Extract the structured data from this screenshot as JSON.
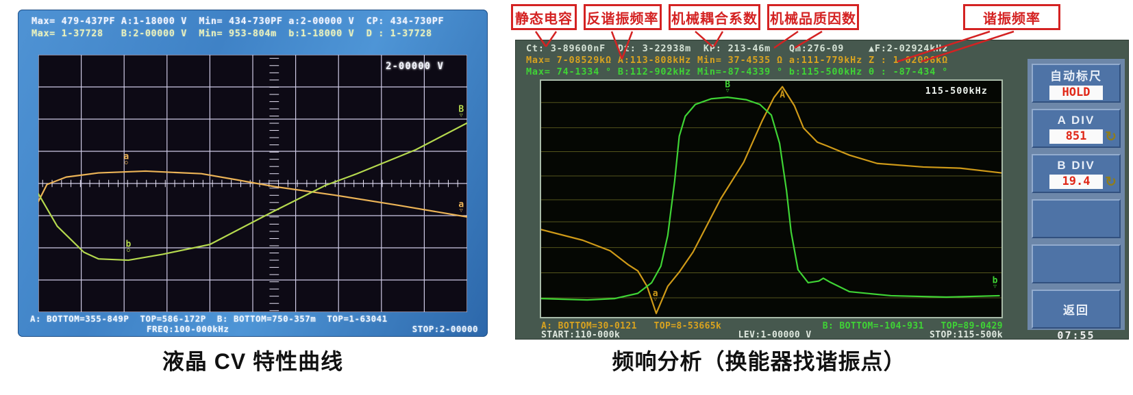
{
  "left": {
    "caption": "液晶 CV 特性曲线",
    "header_line1": "Max= 479-437PF A:1-18000 V  Min= 434-730PF a:2-00000 V  CP: 434-730PF",
    "header_line2": "Max= 1-37728   B:2-00000 V  Min= 953-804m  b:1-18000 V  D : 1-37728",
    "scale_label": "2-00000 V",
    "footer_line1": "A: BOTTOM=355-849P  TOP=586-172P  B: BOTTOM=750-357m  TOP=1-63041",
    "footer_freq": "FREQ:100-000kHz",
    "footer_stop": "STOP:2-00000"
  },
  "right": {
    "caption": "频响分析（换能器找谐振点）",
    "callouts": [
      "静态电容",
      "反谐振频率",
      "机械耦合系数",
      "机械品质因数",
      "谐振频率"
    ],
    "header_line1": "Ct: 3-89600nF  Dt: 3-22938m  KP: 213-46m   Qm:276-09    ▲F:2-02924kHz",
    "header_line2": "Max= 7-08529kΩ A:113-808kHz Min= 37-4535 Ω a:111-779kHz Z : 1-02096kΩ",
    "header_line3": "Max= 74-1334 ° B:112-902kHz Min=-87-4339 ° b:115-500kHz θ : -87-434 °",
    "plot_label": "115-500kHz",
    "footer_a": "A: BOTTOM=30-0121   TOP=8-53665k",
    "footer_b": "B: BOTTOM=-104-931   TOP=89-0429",
    "footer_start": "START:110-000k",
    "footer_lev": "LEV:1-00000 V",
    "footer_stop": "STOP:115-500k",
    "time": "07:55",
    "knob_glyph": "↻",
    "buttons": [
      {
        "title": "自动标尺",
        "value": "HOLD",
        "knob": false
      },
      {
        "title": "A DIV",
        "value": "851",
        "knob": true
      },
      {
        "title": "B DIV",
        "value": "19.4",
        "knob": true
      },
      {
        "title": "",
        "value": "",
        "knob": false
      },
      {
        "title": "",
        "value": "",
        "knob": false
      },
      {
        "title": "返回",
        "value": "",
        "knob": false
      }
    ]
  },
  "colors": {
    "callout_red": "#d42222",
    "softkey_blue": "#4e73a6",
    "value_red": "#e02818",
    "trace_orange_left": "#ecb457",
    "trace_green_left": "#b5d94e",
    "trace_orange_right": "#cf9a18",
    "trace_green_right": "#3fd435",
    "yellow_readout": "#d9a31f"
  },
  "chart_data": [
    {
      "id": "cv",
      "type": "line",
      "title": "液晶 CV 特性曲线",
      "note": "LCD C-V sweep at FREQ 100.000 kHz; points are percent positions on the graticule (y measured downward). Readouts: CP max 479.437 pF / min 434.730 pF, D max 1.37728 / min 953.804 m",
      "grid": {
        "v_step_pct": 10,
        "h_step_pct": 12.5,
        "tick_axis_x_pct": 55,
        "tick_axis_y_pct": 50,
        "color": "#cfcbe6",
        "tick_color": "#eae6f8"
      },
      "series": [
        {
          "name": "CP-trace-a",
          "color": "#ecb457",
          "readout_max": "479-437PF",
          "readout_min": "434-730PF",
          "points_pct": [
            [
              0,
              57
            ],
            [
              2,
              50.4
            ],
            [
              6.5,
              47.5
            ],
            [
              14,
              45.9
            ],
            [
              25,
              45.2
            ],
            [
              38,
              46.2
            ],
            [
              46,
              48.5
            ],
            [
              55,
              51.2
            ],
            [
              69,
              54.5
            ],
            [
              84,
              58.5
            ],
            [
              100,
              63
            ]
          ]
        },
        {
          "name": "D-trace-b",
          "color": "#b5d94e",
          "readout_max": "1-37728",
          "readout_min": "953-804m",
          "points_pct": [
            [
              0,
              54
            ],
            [
              4.4,
              66.6
            ],
            [
              10.6,
              76.7
            ],
            [
              14,
              79.3
            ],
            [
              21,
              79.8
            ],
            [
              29,
              77.5
            ],
            [
              40,
              73.7
            ],
            [
              55,
              60.7
            ],
            [
              67,
              50.7
            ],
            [
              74,
              46.4
            ],
            [
              88,
              36.9
            ],
            [
              100,
              26.5
            ]
          ]
        }
      ],
      "markers": [
        {
          "t": "a",
          "color": "#ecb457",
          "x": 20.5,
          "y": 40.5,
          "sub": "○"
        },
        {
          "t": "b",
          "color": "#b5d94e",
          "x": 21,
          "y": 74.5,
          "sub": "○"
        },
        {
          "t": "B",
          "color": "#b5d94e",
          "x": 98.6,
          "y": 22,
          "sub": "▽"
        },
        {
          "t": "a",
          "color": "#ecb457",
          "x": 98.6,
          "y": 59,
          "sub": "▽"
        }
      ]
    },
    {
      "id": "fr",
      "type": "line",
      "title": "频响分析（换能器找谐振点）",
      "x_range": {
        "start": "110.000 kHz",
        "stop": "115.500 kHz",
        "level": "1.00000 V"
      },
      "note": "Transducer impedance |Z| (A, orange, min at resonance 111.779 kHz, peak at anti-resonance 113.808 kHz) and phase (B, green, max 74.1334°); points are percent positions on the graticule (y down)",
      "grid": {
        "h_lines_pct": [
          9.2,
          19.9,
          30,
          40.3,
          50.4,
          59.7,
          70.6,
          81.3,
          91.9
        ],
        "color": "#55551c",
        "tick_color": "#55551c"
      },
      "series": [
        {
          "name": "impedance-trace-A",
          "color": "#cf9a18",
          "readout_max": "7-08529kΩ",
          "readout_min": "37-4535 Ω",
          "points_pct": [
            [
              0,
              63
            ],
            [
              9,
              67.5
            ],
            [
              15,
              72
            ],
            [
              19,
              78
            ],
            [
              21,
              80.5
            ],
            [
              23,
              87
            ],
            [
              25,
              98.5
            ],
            [
              27.5,
              87
            ],
            [
              30,
              81
            ],
            [
              33,
              72.5
            ],
            [
              39,
              50
            ],
            [
              44,
              34.5
            ],
            [
              48,
              17
            ],
            [
              50.6,
              7
            ],
            [
              52.4,
              2.5
            ],
            [
              55,
              10.5
            ],
            [
              57,
              20
            ],
            [
              60,
              26
            ],
            [
              62,
              27.5
            ],
            [
              67,
              31.5
            ],
            [
              73,
              35
            ],
            [
              83,
              36.5
            ],
            [
              91,
              37
            ],
            [
              100,
              39
            ]
          ]
        },
        {
          "name": "phase-trace-B",
          "color": "#3fd435",
          "readout_max": "74-1334 °",
          "readout_min": "-87-4339 °",
          "points_pct": [
            [
              0,
              92.2
            ],
            [
              10,
              92.8
            ],
            [
              16,
              92.2
            ],
            [
              21,
              90
            ],
            [
              24,
              85.5
            ],
            [
              26,
              78.5
            ],
            [
              27.5,
              65.5
            ],
            [
              29,
              42.5
            ],
            [
              30,
              23.5
            ],
            [
              31.3,
              15
            ],
            [
              33.5,
              10
            ],
            [
              37,
              7.6
            ],
            [
              40.5,
              7
            ],
            [
              44.5,
              8
            ],
            [
              47.5,
              10
            ],
            [
              50,
              14.5
            ],
            [
              51.8,
              26.5
            ],
            [
              53.3,
              46.5
            ],
            [
              54.3,
              64
            ],
            [
              55.8,
              80
            ],
            [
              58,
              85.5
            ],
            [
              60.3,
              84.8
            ],
            [
              61.3,
              83.6
            ],
            [
              62.8,
              85.3
            ],
            [
              67,
              89.3
            ],
            [
              76,
              91
            ],
            [
              88,
              91.6
            ],
            [
              99.5,
              91
            ]
          ]
        }
      ],
      "markers": [
        {
          "t": "B",
          "color": "#3fd435",
          "x": 40.5,
          "y": 2.5,
          "sub": "▽"
        },
        {
          "t": "A",
          "color": "#cf9a18",
          "x": 52.4,
          "y": 5,
          "sup": "○"
        },
        {
          "t": "a",
          "color": "#cf9a18",
          "x": 24.8,
          "y": 91,
          "sub": "▽"
        },
        {
          "t": "b",
          "color": "#3fd435",
          "x": 98.6,
          "y": 85.5,
          "sub": "▽"
        }
      ]
    }
  ]
}
